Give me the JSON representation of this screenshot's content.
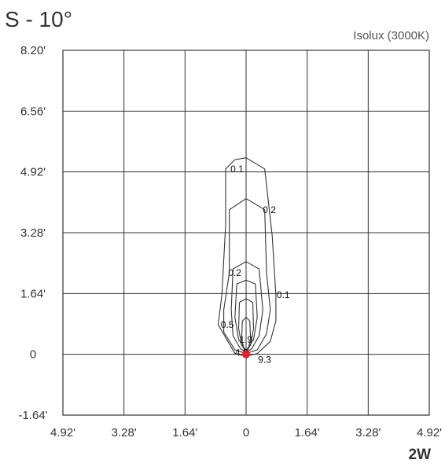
{
  "chart_data": {
    "type": "isolux-contour",
    "title": "S - 10°",
    "subtitle": "Isolux (3000K)",
    "power_label": "2W",
    "x_tick_labels": [
      "4.92'",
      "3.28'",
      "1.64'",
      "0",
      "1.64'",
      "3.28'",
      "4.92'"
    ],
    "x_tick_values": [
      -4.92,
      -3.28,
      -1.64,
      0,
      1.64,
      3.28,
      4.92
    ],
    "y_tick_labels": [
      "8.20'",
      "6.56'",
      "4.92'",
      "3.28'",
      "1.64'",
      "0",
      "-1.64'"
    ],
    "y_tick_values": [
      8.2,
      6.56,
      4.92,
      3.28,
      1.64,
      0,
      -1.64
    ],
    "xlim": [
      -4.92,
      4.92
    ],
    "ylim": [
      -1.64,
      8.2
    ],
    "grid": true,
    "source_point": {
      "x": 0,
      "y": 0,
      "color": "#e8202a"
    },
    "contours": [
      {
        "level": "0.1",
        "points": [
          [
            0,
            5.3
          ],
          [
            0.5,
            5.0
          ],
          [
            0.7,
            3.2
          ],
          [
            0.8,
            1.6
          ],
          [
            0.8,
            0.9
          ],
          [
            0.65,
            0.35
          ],
          [
            0.3,
            0.02
          ],
          [
            0,
            -0.05
          ],
          [
            -0.3,
            0.02
          ],
          [
            -0.75,
            0.8
          ],
          [
            -0.65,
            1.6
          ],
          [
            -0.55,
            3.5
          ],
          [
            -0.55,
            5.0
          ],
          [
            -0.3,
            5.25
          ],
          [
            0,
            5.3
          ]
        ]
      },
      {
        "level": "0.2",
        "points": [
          [
            0,
            4.2
          ],
          [
            0.5,
            3.9
          ],
          [
            0.55,
            2.2
          ],
          [
            0.65,
            1.2
          ],
          [
            0.55,
            0.55
          ],
          [
            0.3,
            0.12
          ],
          [
            0,
            0.02
          ],
          [
            -0.3,
            0.12
          ],
          [
            -0.6,
            0.6
          ],
          [
            -0.6,
            1.2
          ],
          [
            -0.45,
            2.2
          ],
          [
            -0.45,
            3.9
          ],
          [
            0,
            4.2
          ]
        ]
      },
      {
        "level": "0.5",
        "points": [
          [
            0,
            2.5
          ],
          [
            0.35,
            2.3
          ],
          [
            0.45,
            1.2
          ],
          [
            0.35,
            0.5
          ],
          [
            0.15,
            0.15
          ],
          [
            0,
            0.05
          ],
          [
            -0.15,
            0.15
          ],
          [
            -0.35,
            0.5
          ],
          [
            -0.4,
            1.2
          ],
          [
            -0.35,
            2.3
          ],
          [
            0,
            2.5
          ]
        ]
      },
      {
        "level": "1.9",
        "points": [
          [
            0,
            2.0
          ],
          [
            0.25,
            1.9
          ],
          [
            0.3,
            1.0
          ],
          [
            0.2,
            0.4
          ],
          [
            0,
            0.1
          ],
          [
            -0.2,
            0.4
          ],
          [
            -0.3,
            1.0
          ],
          [
            -0.25,
            1.9
          ],
          [
            0,
            2.0
          ]
        ]
      },
      {
        "level": "4.6",
        "points": [
          [
            0,
            1.5
          ],
          [
            0.18,
            1.4
          ],
          [
            0.2,
            0.7
          ],
          [
            0.12,
            0.25
          ],
          [
            0,
            0.08
          ],
          [
            -0.12,
            0.25
          ],
          [
            -0.2,
            0.7
          ],
          [
            -0.18,
            1.4
          ],
          [
            0,
            1.5
          ]
        ]
      },
      {
        "level": "9.3",
        "points": [
          [
            0,
            1.0
          ],
          [
            0.1,
            0.9
          ],
          [
            0.12,
            0.4
          ],
          [
            0.05,
            0.12
          ],
          [
            0,
            0.05
          ],
          [
            -0.05,
            0.12
          ],
          [
            -0.12,
            0.4
          ],
          [
            -0.1,
            0.9
          ],
          [
            0,
            1.0
          ]
        ]
      }
    ],
    "contour_labels": [
      {
        "text": "0.1",
        "x": -0.42,
        "y": 5.0
      },
      {
        "text": "0.2",
        "x": 0.45,
        "y": 3.9
      },
      {
        "text": "0.2",
        "x": -0.48,
        "y": 2.2
      },
      {
        "text": "0.1",
        "x": 0.82,
        "y": 1.6
      },
      {
        "text": "0.5",
        "x": -0.68,
        "y": 0.8
      },
      {
        "text": "1.9",
        "x": -0.18,
        "y": 0.4
      },
      {
        "text": "4.6",
        "x": -0.3,
        "y": 0.05
      },
      {
        "text": "9.3",
        "x": 0.32,
        "y": -0.15
      }
    ]
  }
}
